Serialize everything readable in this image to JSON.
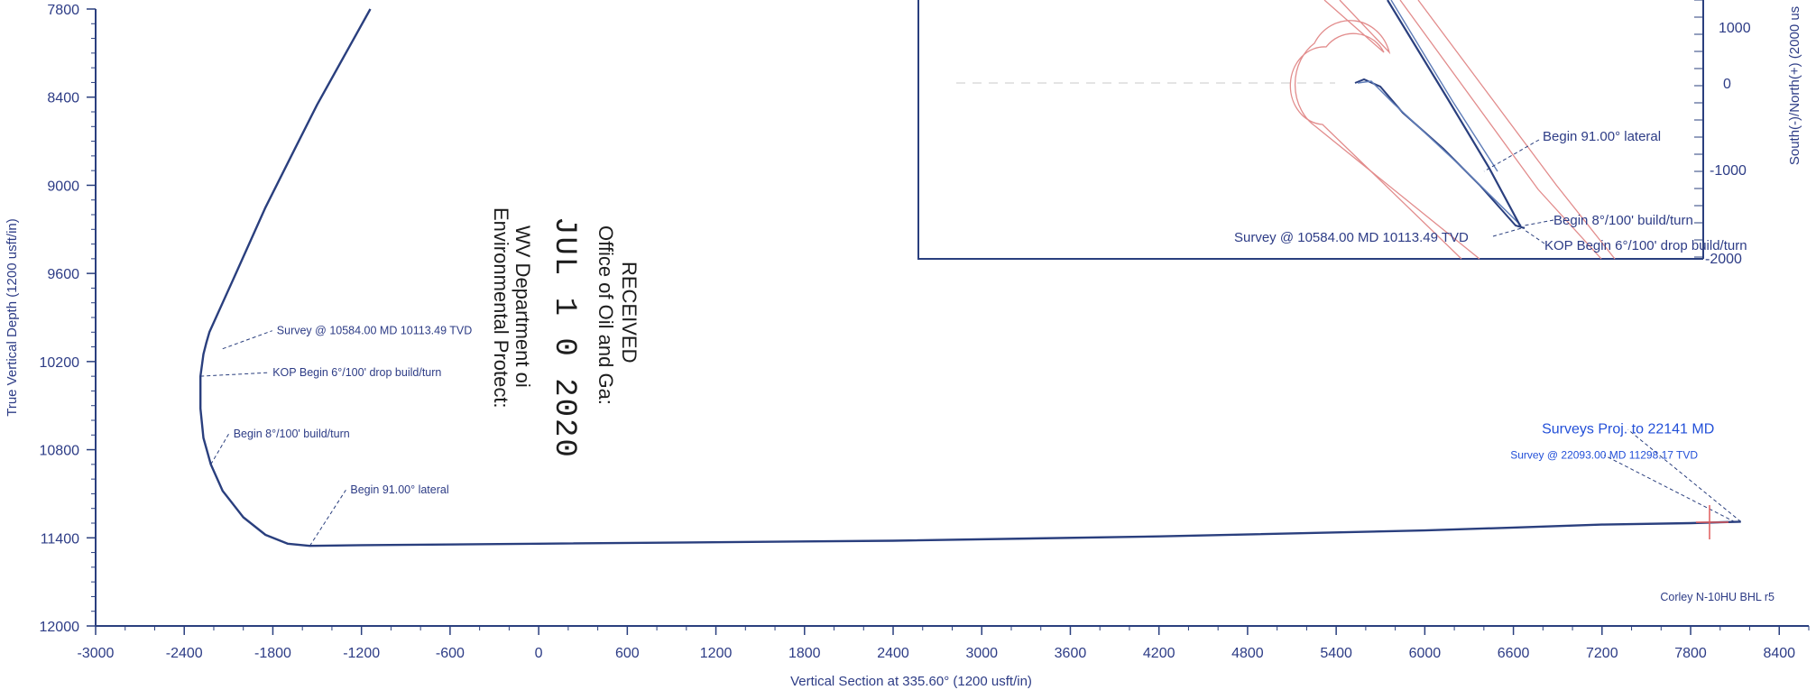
{
  "chart_data": {
    "type": "line",
    "title": "",
    "xlabel": "Vertical Section at 335.60° (1200 usft/in)",
    "ylabel": "True Vertical Depth (1200 usft/in)",
    "xlim": [
      -3000,
      8600
    ],
    "ylim": [
      12000,
      7800
    ],
    "x_ticks": [
      "-3000",
      "-2400",
      "-1800",
      "-1200",
      "-600",
      "0",
      "600",
      "1200",
      "1800",
      "2400",
      "3000",
      "3600",
      "4200",
      "4800",
      "5400",
      "6000",
      "6600",
      "7200",
      "7800",
      "8400"
    ],
    "y_ticks": [
      "7800",
      "8400",
      "9000",
      "9600",
      "10200",
      "10800",
      "11400",
      "12000"
    ],
    "y_inverted": true,
    "grid": false,
    "series": [
      {
        "name": "",
        "color": "#2a3f7e",
        "points": [
          [
            -1140,
            7800
          ],
          [
            -1500,
            8450
          ],
          [
            -1650,
            8750
          ],
          [
            -1850,
            9150
          ],
          [
            -2050,
            9600
          ],
          [
            -2230,
            10000
          ],
          [
            -2250,
            10070
          ],
          [
            -2270,
            10150
          ],
          [
            -2290,
            10300
          ],
          [
            -2290,
            10520
          ],
          [
            -2270,
            10720
          ],
          [
            -2220,
            10900
          ],
          [
            -2140,
            11080
          ],
          [
            -2000,
            11260
          ],
          [
            -1850,
            11380
          ],
          [
            -1700,
            11440
          ],
          [
            -1550,
            11455
          ],
          [
            -1200,
            11450
          ],
          [
            0,
            11440
          ],
          [
            2400,
            11420
          ],
          [
            4200,
            11390
          ],
          [
            6000,
            11350
          ],
          [
            6600,
            11330
          ],
          [
            7200,
            11310
          ],
          [
            7800,
            11300
          ],
          [
            8140,
            11290
          ]
        ]
      }
    ],
    "annotations": [
      {
        "text": "Survey @ 10584.00 MD 10113.49 TVD",
        "x": -2140,
        "y": 10113
      },
      {
        "text": "KOP Begin 6°/100' drop build/turn",
        "x": -2290,
        "y": 10300
      },
      {
        "text": "Begin 8°/100' build/turn",
        "x": -2220,
        "y": 10900
      },
      {
        "text": "Begin 91.00° lateral",
        "x": -1550,
        "y": 11455
      },
      {
        "text": "Surveys Proj. to 22141 MD",
        "x": 8140,
        "y": 11290
      },
      {
        "text": "Survey @ 22093.00 MD 11298.17 TVD",
        "x": 8100,
        "y": 11292
      }
    ],
    "corner_label": "Corley N-10HU BHL r5",
    "inset": {
      "type": "line",
      "y_ticks": [
        "0",
        "-1000",
        "-2000"
      ],
      "y_tick_top_partial": "1000",
      "ylabel": "South(-)/North(+) (2000 us",
      "annotations": [
        "Begin 91.00° lateral",
        "Begin 8°/100' build/turn",
        "Survey @ 10584.00 MD 10113.49 TVD",
        "KOP Begin 6°/100' drop build/turn"
      ]
    }
  },
  "stamp": {
    "line1": "RECEIVED",
    "line2": "Office of Oil and Ga:",
    "line3": "JUL 1 0 2020",
    "line4": "WV Department oi",
    "line5": "Environmental Protect:"
  }
}
